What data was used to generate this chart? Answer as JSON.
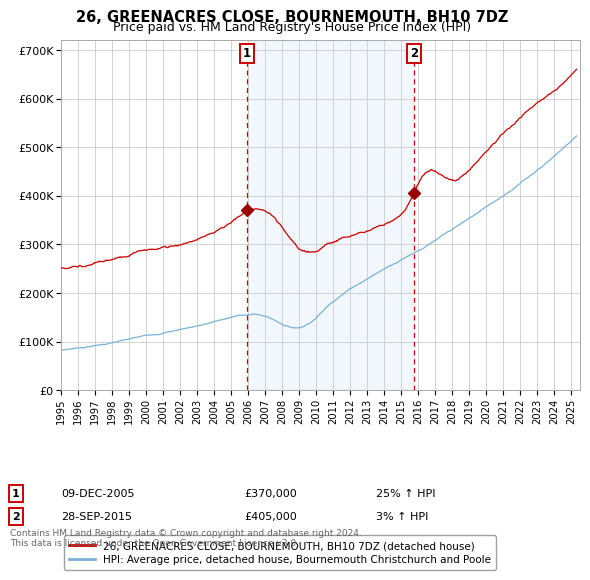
{
  "title": "26, GREENACRES CLOSE, BOURNEMOUTH, BH10 7DZ",
  "subtitle": "Price paid vs. HM Land Registry's House Price Index (HPI)",
  "ylabel_ticks": [
    "£0",
    "£100K",
    "£200K",
    "£300K",
    "£400K",
    "£500K",
    "£600K",
    "£700K"
  ],
  "ytick_values": [
    0,
    100000,
    200000,
    300000,
    400000,
    500000,
    600000,
    700000
  ],
  "ylim": [
    0,
    720000
  ],
  "xlim_start": 1995.0,
  "xlim_end": 2025.5,
  "sale1_year": 2005.93,
  "sale1_price": 370000,
  "sale1_label": "1",
  "sale1_date": "09-DEC-2005",
  "sale1_hpi_pct": "25% ↑ HPI",
  "sale2_year": 2015.74,
  "sale2_price": 405000,
  "sale2_label": "2",
  "sale2_date": "28-SEP-2015",
  "sale2_hpi_pct": "3% ↑ HPI",
  "hpi_line_color": "#7ab3d4",
  "price_line_color": "#cc0000",
  "marker_color": "#990000",
  "shade_color": "#d8eaf7",
  "vline_color": "#cc0000",
  "grid_color": "#cccccc",
  "bg_color": "#ffffff",
  "legend_line1": "26, GREENACRES CLOSE, BOURNEMOUTH, BH10 7DZ (detached house)",
  "legend_line2": "HPI: Average price, detached house, Bournemouth Christchurch and Poole",
  "footer1": "Contains HM Land Registry data © Crown copyright and database right 2024.",
  "footer2": "This data is licensed under the Open Government Licence v3.0.",
  "title_fontsize": 10.5,
  "subtitle_fontsize": 9
}
